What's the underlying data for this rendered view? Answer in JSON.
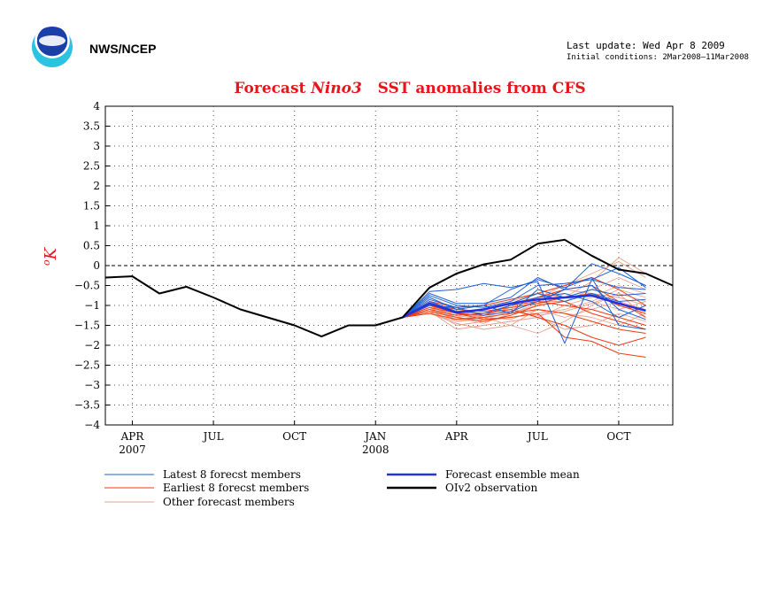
{
  "header": {
    "agency": "NWS/NCEP",
    "last_update": "Last update: Wed Apr 8 2009",
    "initial_conditions": "Initial conditions: 2Mar2008–11Mar2008"
  },
  "chart_data": {
    "type": "line",
    "title_parts": [
      "Forecast ",
      "Nino3",
      "   SST anomalies from CFS"
    ],
    "ylabel_sup": "o",
    "ylabel_main": "K",
    "ylim": [
      -4,
      4
    ],
    "yticks": [
      "4",
      "3.5",
      "3",
      "2.5",
      "2",
      "1.5",
      "1",
      "0.5",
      "0",
      "−0.5",
      "−1",
      "−1.5",
      "−2",
      "−2.5",
      "−3",
      "−3.5",
      "−4"
    ],
    "ytick_values": [
      4,
      3.5,
      3,
      2.5,
      2,
      1.5,
      1,
      0.5,
      0,
      -0.5,
      -1,
      -1.5,
      -2,
      -2.5,
      -3,
      -3.5,
      -4
    ],
    "xlim": [
      0,
      21
    ],
    "xticks": [
      {
        "pos": 1,
        "label": "APR",
        "year": "2007"
      },
      {
        "pos": 4,
        "label": "JUL",
        "year": ""
      },
      {
        "pos": 7,
        "label": "OCT",
        "year": ""
      },
      {
        "pos": 10,
        "label": "JAN",
        "year": "2008"
      },
      {
        "pos": 13,
        "label": "APR",
        "year": ""
      },
      {
        "pos": 16,
        "label": "JUL",
        "year": ""
      },
      {
        "pos": 19,
        "label": "OCT",
        "year": ""
      }
    ],
    "grid": true,
    "colors": {
      "latest": "#1f5fd0",
      "earliest": "#f03a10",
      "other": "#e8a08c",
      "mean": "#2233dd",
      "obs": "#000000"
    },
    "observation": {
      "name": "OIv2 observation",
      "x": [
        0,
        1,
        2,
        3,
        4,
        5,
        6,
        7,
        8,
        9,
        10,
        11,
        12,
        13,
        14,
        15,
        16,
        17,
        18,
        19,
        20,
        21
      ],
      "y": [
        -0.3,
        -0.27,
        -0.7,
        -0.53,
        -0.8,
        -1.1,
        -1.3,
        -1.5,
        -1.78,
        -1.5,
        -1.5,
        -1.3,
        -0.55,
        -0.2,
        0.03,
        0.15,
        0.55,
        0.65,
        0.25,
        -0.1,
        -0.2,
        -0.5
      ]
    },
    "ensemble_mean": {
      "name": "Forecast ensemble mean",
      "x": [
        11,
        12,
        13,
        14,
        15,
        16,
        17,
        18,
        19,
        20
      ],
      "y": [
        -1.3,
        -0.95,
        -1.18,
        -1.1,
        -0.95,
        -0.85,
        -0.8,
        -0.75,
        -0.95,
        -1.13
      ]
    },
    "latest_members": {
      "name": "Latest 8 forecast members",
      "x": [
        11,
        12,
        13,
        14,
        15,
        16,
        17,
        18,
        19,
        20
      ],
      "series": [
        [
          -1.3,
          -0.65,
          -0.6,
          -0.45,
          -0.55,
          -0.4,
          -1.95,
          -0.35,
          -0.55,
          -0.6
        ],
        [
          -1.3,
          -0.7,
          -0.95,
          -0.95,
          -0.8,
          -0.3,
          -0.6,
          0.05,
          -0.2,
          -0.5
        ],
        [
          -1.3,
          -0.75,
          -1.0,
          -1.05,
          -0.9,
          -0.5,
          -0.45,
          -0.35,
          -0.05,
          -0.55
        ],
        [
          -1.3,
          -0.85,
          -1.05,
          -1.0,
          -1.2,
          -0.6,
          -0.8,
          -0.6,
          -0.75,
          -0.7
        ],
        [
          -1.3,
          -0.9,
          -1.15,
          -1.2,
          -1.0,
          -0.8,
          -0.7,
          -0.9,
          -1.3,
          -1.0
        ],
        [
          -1.3,
          -0.95,
          -1.2,
          -1.1,
          -0.95,
          -0.7,
          -0.9,
          -0.7,
          -0.9,
          -0.85
        ],
        [
          -1.3,
          -1.0,
          -1.05,
          -1.25,
          -1.15,
          -0.9,
          -0.6,
          -0.5,
          -1.1,
          -1.35
        ],
        [
          -1.3,
          -0.8,
          -1.1,
          -1.0,
          -0.6,
          -0.35,
          -0.55,
          -0.3,
          -1.5,
          -1.6
        ]
      ]
    },
    "earliest_members": {
      "name": "Earliest 8 forecast members",
      "x": [
        11,
        12,
        13,
        14,
        15,
        16,
        17,
        18,
        19,
        20
      ],
      "series": [
        [
          -1.3,
          -1.0,
          -1.2,
          -1.35,
          -1.3,
          -1.2,
          -1.8,
          -1.9,
          -2.2,
          -2.3
        ],
        [
          -1.3,
          -1.1,
          -1.25,
          -1.2,
          -1.1,
          -1.3,
          -1.5,
          -1.8,
          -2.0,
          -1.8
        ],
        [
          -1.3,
          -1.15,
          -1.3,
          -1.4,
          -1.25,
          -1.0,
          -0.9,
          -1.2,
          -1.4,
          -1.6
        ],
        [
          -1.3,
          -1.0,
          -1.15,
          -1.1,
          -0.95,
          -0.8,
          -0.6,
          -0.5,
          -0.9,
          -1.3
        ],
        [
          -1.3,
          -0.9,
          -1.05,
          -1.0,
          -0.85,
          -0.7,
          -0.5,
          -0.3,
          -0.6,
          -1.0
        ],
        [
          -1.3,
          -1.05,
          -1.2,
          -1.25,
          -1.0,
          -0.9,
          -1.0,
          -1.1,
          -1.3,
          -1.5
        ],
        [
          -1.3,
          -0.95,
          -1.1,
          -1.15,
          -1.05,
          -0.95,
          -0.8,
          -0.7,
          -1.0,
          -1.2
        ],
        [
          -1.3,
          -1.2,
          -1.35,
          -1.3,
          -1.2,
          -1.1,
          -1.2,
          -1.4,
          -1.6,
          -1.7
        ]
      ]
    },
    "other_members": {
      "name": "Other forecast members",
      "x": [
        11,
        12,
        13,
        14,
        15,
        16,
        17,
        18,
        19,
        20
      ],
      "series": [
        [
          -1.3,
          -1.1,
          -1.5,
          -1.4,
          -1.3,
          -1.2,
          -1.1,
          -0.9,
          -0.6,
          -0.8
        ],
        [
          -1.3,
          -1.2,
          -1.4,
          -1.3,
          -1.5,
          -1.7,
          -1.4,
          -1.0,
          -0.7,
          -0.9
        ],
        [
          -1.3,
          -1.0,
          -1.3,
          -1.2,
          -1.0,
          -0.8,
          -0.5,
          -0.2,
          0.1,
          -0.3
        ],
        [
          -1.3,
          -1.15,
          -1.6,
          -1.5,
          -1.4,
          -1.3,
          -1.6,
          -1.5,
          -1.2,
          -1.4
        ],
        [
          -1.3,
          -0.9,
          -1.2,
          -1.3,
          -1.1,
          -0.9,
          -0.9,
          -0.6,
          -0.3,
          -0.6
        ],
        [
          -1.3,
          -1.05,
          -1.25,
          -1.1,
          -0.9,
          -0.7,
          -0.8,
          -0.4,
          0.2,
          -0.2
        ],
        [
          -1.3,
          -1.2,
          -1.45,
          -1.6,
          -1.5,
          -1.1,
          -1.2,
          -1.3,
          -1.5,
          -1.2
        ],
        [
          -1.3,
          -1.0,
          -1.1,
          -1.0,
          -1.2,
          -1.0,
          -0.7,
          -0.9,
          -1.1,
          -0.9
        ],
        [
          -1.3,
          -1.1,
          -1.35,
          -1.25,
          -1.05,
          -1.3,
          -1.0,
          -0.8,
          -0.5,
          -0.7
        ],
        [
          -1.3,
          -0.95,
          -1.15,
          -1.3,
          -1.35,
          -1.1,
          -1.3,
          -1.1,
          -0.9,
          -1.1
        ],
        [
          -1.3,
          -1.1,
          -1.3,
          -1.45,
          -1.2,
          -0.95,
          -0.6,
          -0.7,
          -0.8,
          -1.0
        ],
        [
          -1.3,
          -1.05,
          -1.4,
          -1.35,
          -1.15,
          -1.25,
          -1.15,
          -0.95,
          -0.7,
          -1.3
        ]
      ]
    },
    "legend": [
      {
        "label": "Latest 8 forecst members",
        "key": "latest",
        "bold": false
      },
      {
        "label": "Earliest 8 forecst members",
        "key": "earliest",
        "bold": false
      },
      {
        "label": "Other forecast members",
        "key": "other",
        "bold": false
      },
      {
        "label": "Forecast ensemble mean",
        "key": "mean",
        "bold": true
      },
      {
        "label": "OIv2 observation",
        "key": "obs",
        "bold": true
      }
    ]
  }
}
